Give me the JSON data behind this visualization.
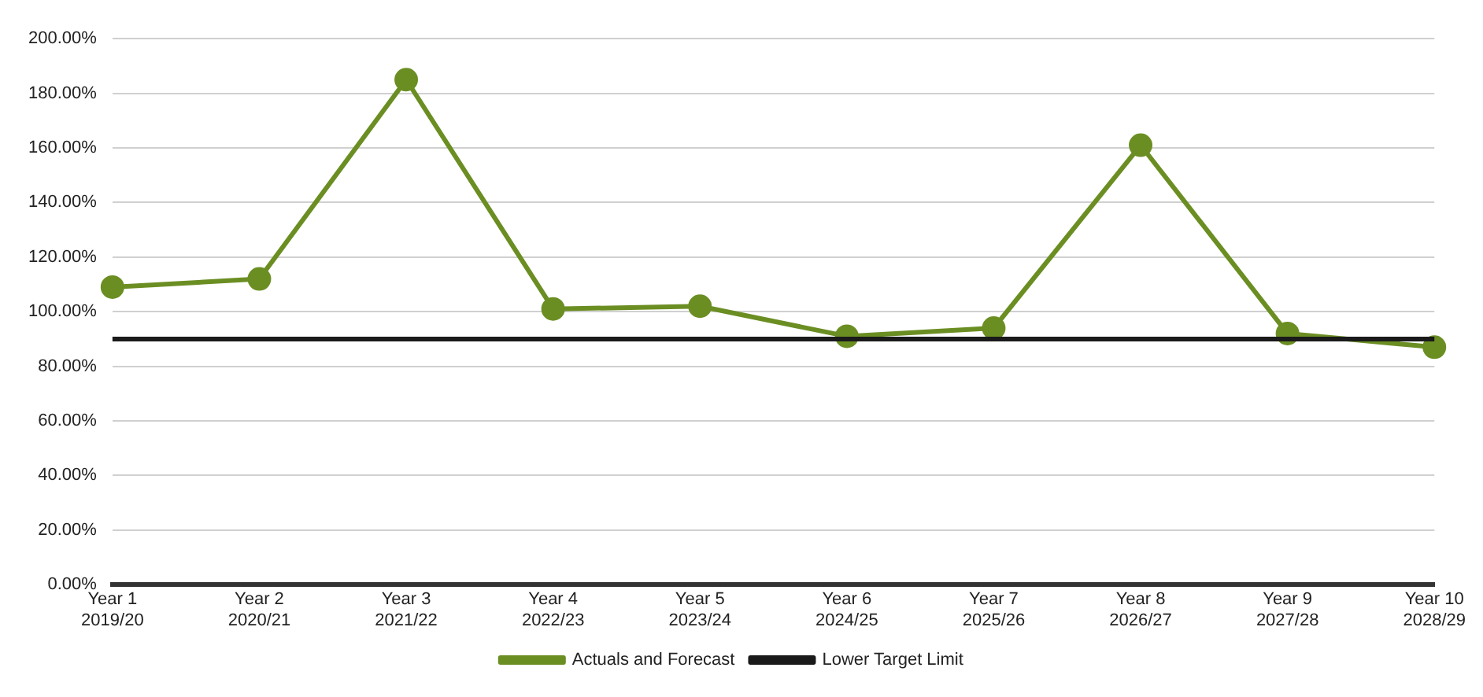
{
  "chart_data": {
    "type": "line",
    "categories": [
      "Year 1\n2019/20",
      "Year 2\n2020/21",
      "Year 3\n2021/22",
      "Year 4\n2022/23",
      "Year 5\n2023/24",
      "Year 6\n2024/25",
      "Year 7\n2025/26",
      "Year 8\n2026/27",
      "Year 9\n2027/28",
      "Year 10\n2028/29"
    ],
    "series": [
      {
        "name": "Actuals and Forecast",
        "color": "#6b8e23",
        "marker": "circle",
        "values": [
          109,
          112,
          185,
          101,
          102,
          91,
          94,
          161,
          92,
          87
        ]
      },
      {
        "name": "Lower Target Limit",
        "color": "#1a1a1a",
        "marker": "none",
        "values": [
          90,
          90,
          90,
          90,
          90,
          90,
          90,
          90,
          90,
          90
        ]
      }
    ],
    "ylim": [
      0,
      200
    ],
    "yticks": [
      {
        "value": 0,
        "label": "0.00%"
      },
      {
        "value": 20,
        "label": "20.00%"
      },
      {
        "value": 40,
        "label": "40.00%"
      },
      {
        "value": 60,
        "label": "60.00%"
      },
      {
        "value": 80,
        "label": "80.00%"
      },
      {
        "value": 100,
        "label": "100.00%"
      },
      {
        "value": 120,
        "label": "120.00%"
      },
      {
        "value": 140,
        "label": "140.00%"
      },
      {
        "value": 160,
        "label": "160.00%"
      },
      {
        "value": 180,
        "label": "180.00%"
      },
      {
        "value": 200,
        "label": "200.00%"
      }
    ],
    "grid": "y",
    "legend": "bottom"
  }
}
